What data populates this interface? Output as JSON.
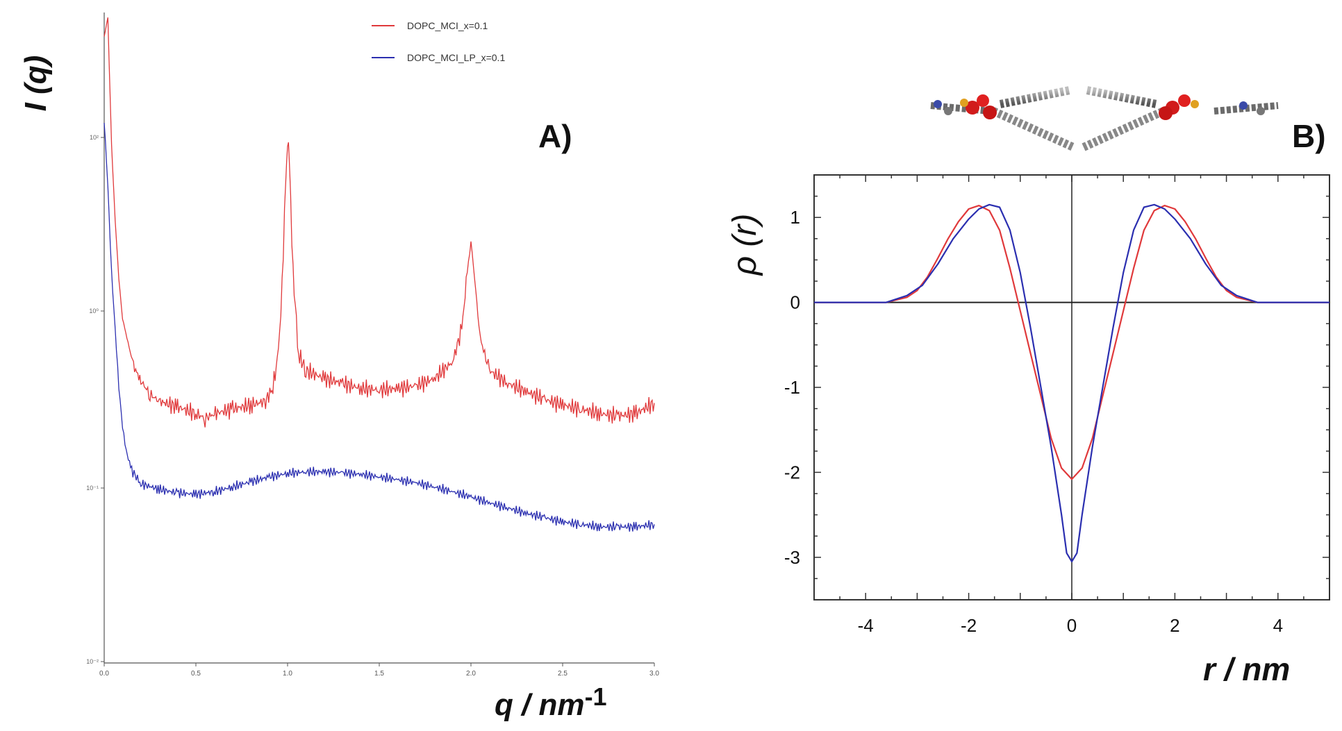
{
  "colors": {
    "red_series": "#e0393b",
    "blue_series": "#2b2fb0",
    "axis": "#222222",
    "text": "#111111"
  },
  "chart_data": [
    {
      "type": "line",
      "panel_label": "A)",
      "xlabel": "q / nm",
      "xlabel_sup": "-1",
      "ylabel": "I (q)",
      "y_scale": "log",
      "xlim": [
        0.0,
        3.0
      ],
      "ylim": [
        0.001,
        1000
      ],
      "x_ticks": [
        "0.0",
        "0.5",
        "1.0",
        "1.5",
        "2.0",
        "2.5",
        "3.0"
      ],
      "y_ticks": [
        "10²",
        "10⁰",
        "10⁻¹",
        "10⁻²"
      ],
      "grid": false,
      "legend_position": "top-center",
      "series": [
        {
          "name": "DOPC_MCI_x=0.1",
          "color": "red",
          "points": [
            [
              0.0,
              600
            ],
            [
              0.02,
              900
            ],
            [
              0.04,
              60
            ],
            [
              0.06,
              12
            ],
            [
              0.08,
              3.5
            ],
            [
              0.1,
              1.5
            ],
            [
              0.13,
              0.9
            ],
            [
              0.16,
              0.55
            ],
            [
              0.2,
              0.4
            ],
            [
              0.25,
              0.3
            ],
            [
              0.3,
              0.26
            ],
            [
              0.4,
              0.23
            ],
            [
              0.5,
              0.2
            ],
            [
              0.55,
              0.18
            ],
            [
              0.6,
              0.2
            ],
            [
              0.7,
              0.22
            ],
            [
              0.8,
              0.24
            ],
            [
              0.88,
              0.26
            ],
            [
              0.92,
              0.35
            ],
            [
              0.95,
              0.7
            ],
            [
              0.97,
              3
            ],
            [
              0.99,
              30
            ],
            [
              1.0,
              70
            ],
            [
              1.01,
              40
            ],
            [
              1.03,
              4
            ],
            [
              1.06,
              0.7
            ],
            [
              1.1,
              0.5
            ],
            [
              1.2,
              0.42
            ],
            [
              1.3,
              0.38
            ],
            [
              1.4,
              0.34
            ],
            [
              1.5,
              0.33
            ],
            [
              1.6,
              0.34
            ],
            [
              1.7,
              0.36
            ],
            [
              1.8,
              0.42
            ],
            [
              1.9,
              0.6
            ],
            [
              1.95,
              1.2
            ],
            [
              1.98,
              4
            ],
            [
              2.0,
              8
            ],
            [
              2.02,
              3.5
            ],
            [
              2.05,
              1.0
            ],
            [
              2.1,
              0.5
            ],
            [
              2.2,
              0.38
            ],
            [
              2.3,
              0.32
            ],
            [
              2.4,
              0.27
            ],
            [
              2.5,
              0.24
            ],
            [
              2.6,
              0.22
            ],
            [
              2.7,
              0.2
            ],
            [
              2.8,
              0.19
            ],
            [
              2.9,
              0.2
            ],
            [
              3.0,
              0.25
            ]
          ]
        },
        {
          "name": "DOPC_MCI_LP_x=0.1",
          "color": "blue",
          "points": [
            [
              0.0,
              100
            ],
            [
              0.02,
              25
            ],
            [
              0.04,
              4
            ],
            [
              0.06,
              1.2
            ],
            [
              0.08,
              0.35
            ],
            [
              0.1,
              0.15
            ],
            [
              0.12,
              0.09
            ],
            [
              0.15,
              0.06
            ],
            [
              0.2,
              0.045
            ],
            [
              0.3,
              0.04
            ],
            [
              0.4,
              0.037
            ],
            [
              0.5,
              0.036
            ],
            [
              0.6,
              0.038
            ],
            [
              0.7,
              0.042
            ],
            [
              0.8,
              0.047
            ],
            [
              0.9,
              0.052
            ],
            [
              1.0,
              0.056
            ],
            [
              1.1,
              0.058
            ],
            [
              1.2,
              0.058
            ],
            [
              1.3,
              0.057
            ],
            [
              1.4,
              0.055
            ],
            [
              1.5,
              0.052
            ],
            [
              1.6,
              0.049
            ],
            [
              1.7,
              0.046
            ],
            [
              1.8,
              0.042
            ],
            [
              1.9,
              0.038
            ],
            [
              2.0,
              0.034
            ],
            [
              2.1,
              0.03
            ],
            [
              2.2,
              0.027
            ],
            [
              2.3,
              0.024
            ],
            [
              2.4,
              0.022
            ],
            [
              2.5,
              0.02
            ],
            [
              2.6,
              0.019
            ],
            [
              2.7,
              0.018
            ],
            [
              2.8,
              0.018
            ],
            [
              2.9,
              0.018
            ],
            [
              3.0,
              0.019
            ]
          ]
        }
      ]
    },
    {
      "type": "line",
      "panel_label": "B)",
      "xlabel": "r / nm",
      "ylabel": "ρ (r)",
      "xlim": [
        -5,
        5
      ],
      "ylim": [
        -3.5,
        1.5
      ],
      "x_ticks": [
        -4,
        -2,
        0,
        2,
        4
      ],
      "y_ticks": [
        1,
        0,
        -1,
        -2,
        -3
      ],
      "grid": false,
      "zero_lines": true,
      "series": [
        {
          "color": "red",
          "points": [
            [
              -5.0,
              0.0
            ],
            [
              -3.6,
              0.0
            ],
            [
              -3.2,
              0.06
            ],
            [
              -3.0,
              0.14
            ],
            [
              -2.8,
              0.3
            ],
            [
              -2.6,
              0.52
            ],
            [
              -2.4,
              0.75
            ],
            [
              -2.2,
              0.95
            ],
            [
              -2.0,
              1.1
            ],
            [
              -1.8,
              1.14
            ],
            [
              -1.6,
              1.08
            ],
            [
              -1.4,
              0.85
            ],
            [
              -1.2,
              0.4
            ],
            [
              -1.0,
              -0.1
            ],
            [
              -0.8,
              -0.6
            ],
            [
              -0.6,
              -1.1
            ],
            [
              -0.4,
              -1.6
            ],
            [
              -0.2,
              -1.95
            ],
            [
              0.0,
              -2.08
            ],
            [
              0.2,
              -1.95
            ],
            [
              0.4,
              -1.6
            ],
            [
              0.6,
              -1.1
            ],
            [
              0.8,
              -0.6
            ],
            [
              1.0,
              -0.1
            ],
            [
              1.2,
              0.4
            ],
            [
              1.4,
              0.85
            ],
            [
              1.6,
              1.08
            ],
            [
              1.8,
              1.14
            ],
            [
              2.0,
              1.1
            ],
            [
              2.2,
              0.95
            ],
            [
              2.4,
              0.75
            ],
            [
              2.6,
              0.52
            ],
            [
              2.8,
              0.3
            ],
            [
              3.0,
              0.14
            ],
            [
              3.2,
              0.06
            ],
            [
              3.6,
              0.0
            ],
            [
              5.0,
              0.0
            ]
          ]
        },
        {
          "color": "blue",
          "points": [
            [
              -5.0,
              0.0
            ],
            [
              -3.6,
              0.0
            ],
            [
              -3.2,
              0.08
            ],
            [
              -2.9,
              0.2
            ],
            [
              -2.6,
              0.45
            ],
            [
              -2.3,
              0.75
            ],
            [
              -2.0,
              0.98
            ],
            [
              -1.8,
              1.1
            ],
            [
              -1.6,
              1.15
            ],
            [
              -1.4,
              1.12
            ],
            [
              -1.2,
              0.85
            ],
            [
              -1.0,
              0.35
            ],
            [
              -0.8,
              -0.3
            ],
            [
              -0.6,
              -1.0
            ],
            [
              -0.4,
              -1.7
            ],
            [
              -0.2,
              -2.5
            ],
            [
              -0.1,
              -2.95
            ],
            [
              0.0,
              -3.05
            ],
            [
              0.1,
              -2.95
            ],
            [
              0.2,
              -2.5
            ],
            [
              0.4,
              -1.7
            ],
            [
              0.6,
              -1.0
            ],
            [
              0.8,
              -0.3
            ],
            [
              1.0,
              0.35
            ],
            [
              1.2,
              0.85
            ],
            [
              1.4,
              1.12
            ],
            [
              1.6,
              1.15
            ],
            [
              1.8,
              1.1
            ],
            [
              2.0,
              0.98
            ],
            [
              2.3,
              0.75
            ],
            [
              2.6,
              0.45
            ],
            [
              2.9,
              0.2
            ],
            [
              3.2,
              0.08
            ],
            [
              3.6,
              0.0
            ],
            [
              5.0,
              0.0
            ]
          ]
        }
      ]
    }
  ]
}
